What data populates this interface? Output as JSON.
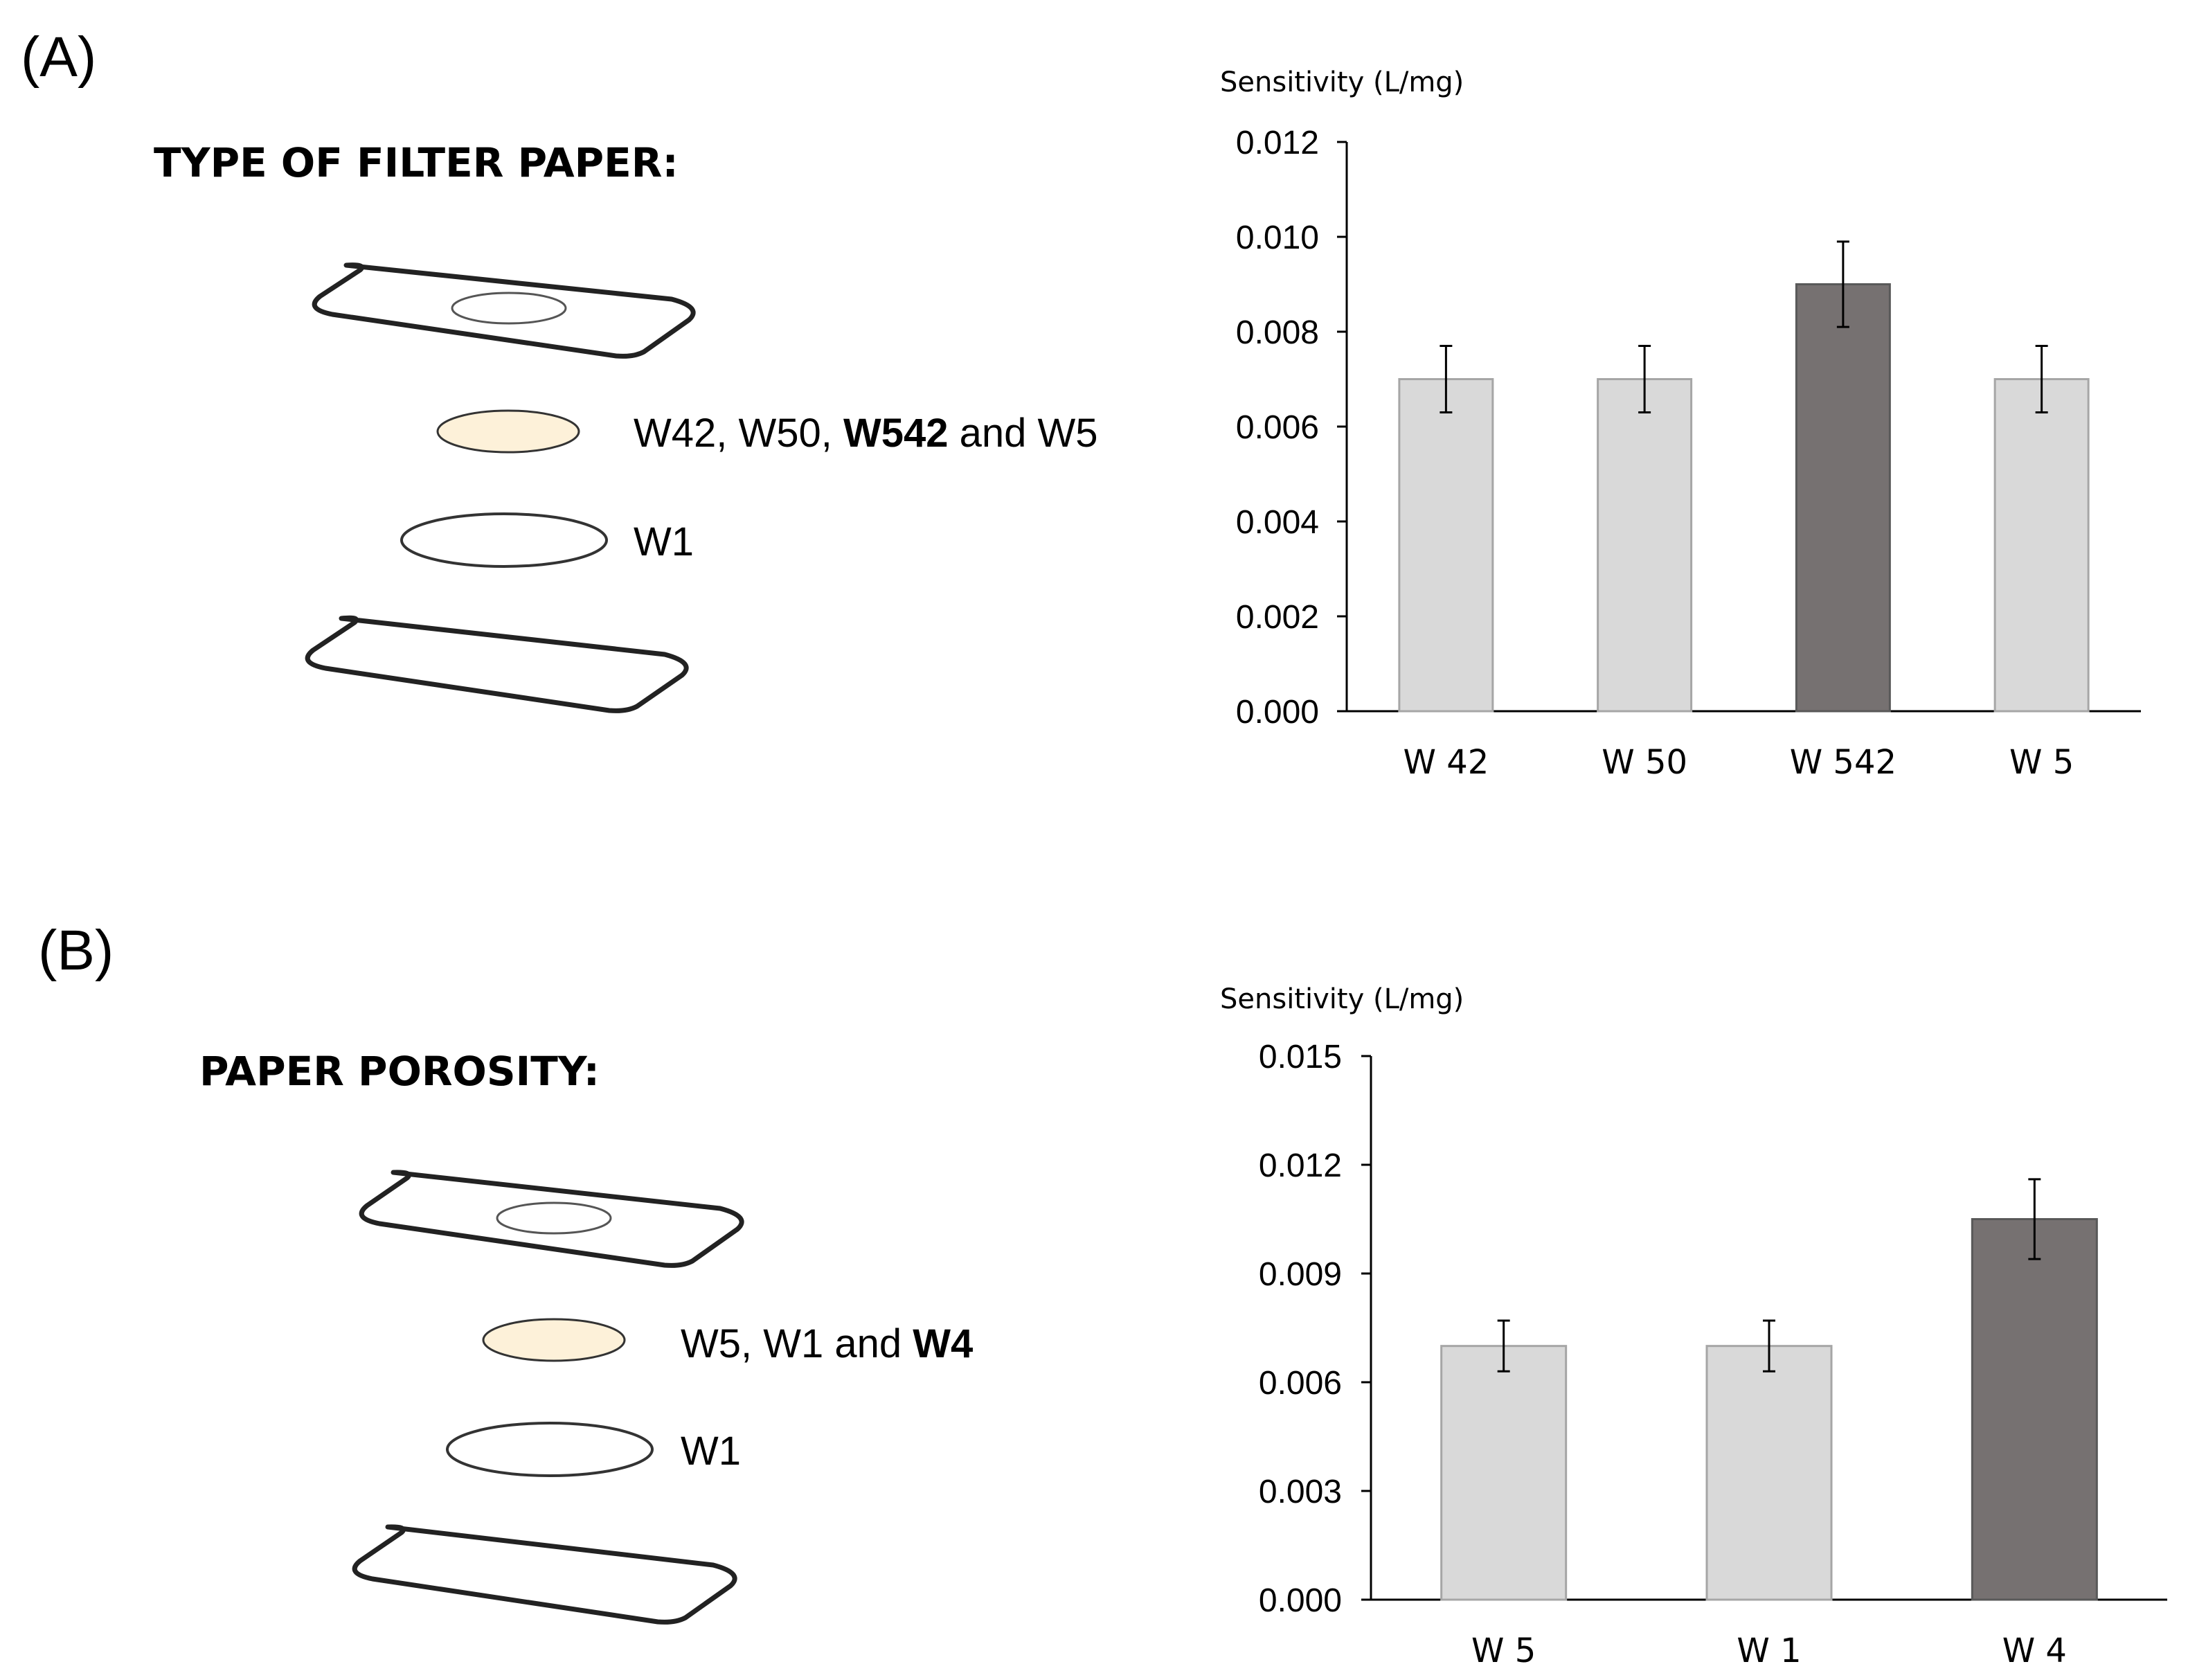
{
  "panels": [
    {
      "label": "(A)",
      "heading": "TYPE OF FILTER PAPER:",
      "layer_label_parts": [
        {
          "text": "W42, W50, ",
          "bold": false
        },
        {
          "text": "W542",
          "bold": true
        },
        {
          "text": " and W5",
          "bold": false
        }
      ],
      "bottom_layer_label": "W1",
      "colors": {
        "sample_disc": "#FDF1D9",
        "bar_light": "#D9D9D9",
        "bar_dark": "#767171",
        "bar_light_stroke": "#A6A6A6",
        "bar_dark_stroke": "#595959"
      }
    },
    {
      "label": "(B)",
      "heading": "PAPER POROSITY:",
      "layer_label_parts": [
        {
          "text": "W5, W1 and ",
          "bold": false
        },
        {
          "text": "W4",
          "bold": true
        }
      ],
      "bottom_layer_label": "W1",
      "colors": {
        "sample_disc": "#FDF1D9",
        "bar_light": "#D9D9D9",
        "bar_dark": "#767171",
        "bar_light_stroke": "#A6A6A6",
        "bar_dark_stroke": "#595959"
      }
    }
  ],
  "chart_data": [
    {
      "type": "bar",
      "title": "",
      "ylabel": "Sensitivity (L/mg)",
      "xlabel": "",
      "categories": [
        "W 42",
        "W 50",
        "W 542",
        "W 5"
      ],
      "values": [
        0.007,
        0.007,
        0.009,
        0.007
      ],
      "errors": [
        0.0007,
        0.0007,
        0.0009,
        0.0007
      ],
      "highlight": [
        false,
        false,
        true,
        false
      ],
      "ylim": [
        0,
        0.012
      ],
      "yticks": [
        "0.000",
        "0.002",
        "0.004",
        "0.006",
        "0.008",
        "0.010",
        "0.012"
      ],
      "grid": false,
      "legend": "none"
    },
    {
      "type": "bar",
      "title": "",
      "ylabel": "Sensitivity (L/mg)",
      "xlabel": "",
      "categories": [
        "W 5",
        "W 1",
        "W 4"
      ],
      "values": [
        0.007,
        0.007,
        0.0105
      ],
      "errors": [
        0.0007,
        0.0007,
        0.0011
      ],
      "highlight": [
        false,
        false,
        true
      ],
      "ylim": [
        0,
        0.015
      ],
      "yticks": [
        "0.000",
        "0.003",
        "0.006",
        "0.009",
        "0.012",
        "0.015"
      ],
      "grid": false,
      "legend": "none"
    }
  ]
}
